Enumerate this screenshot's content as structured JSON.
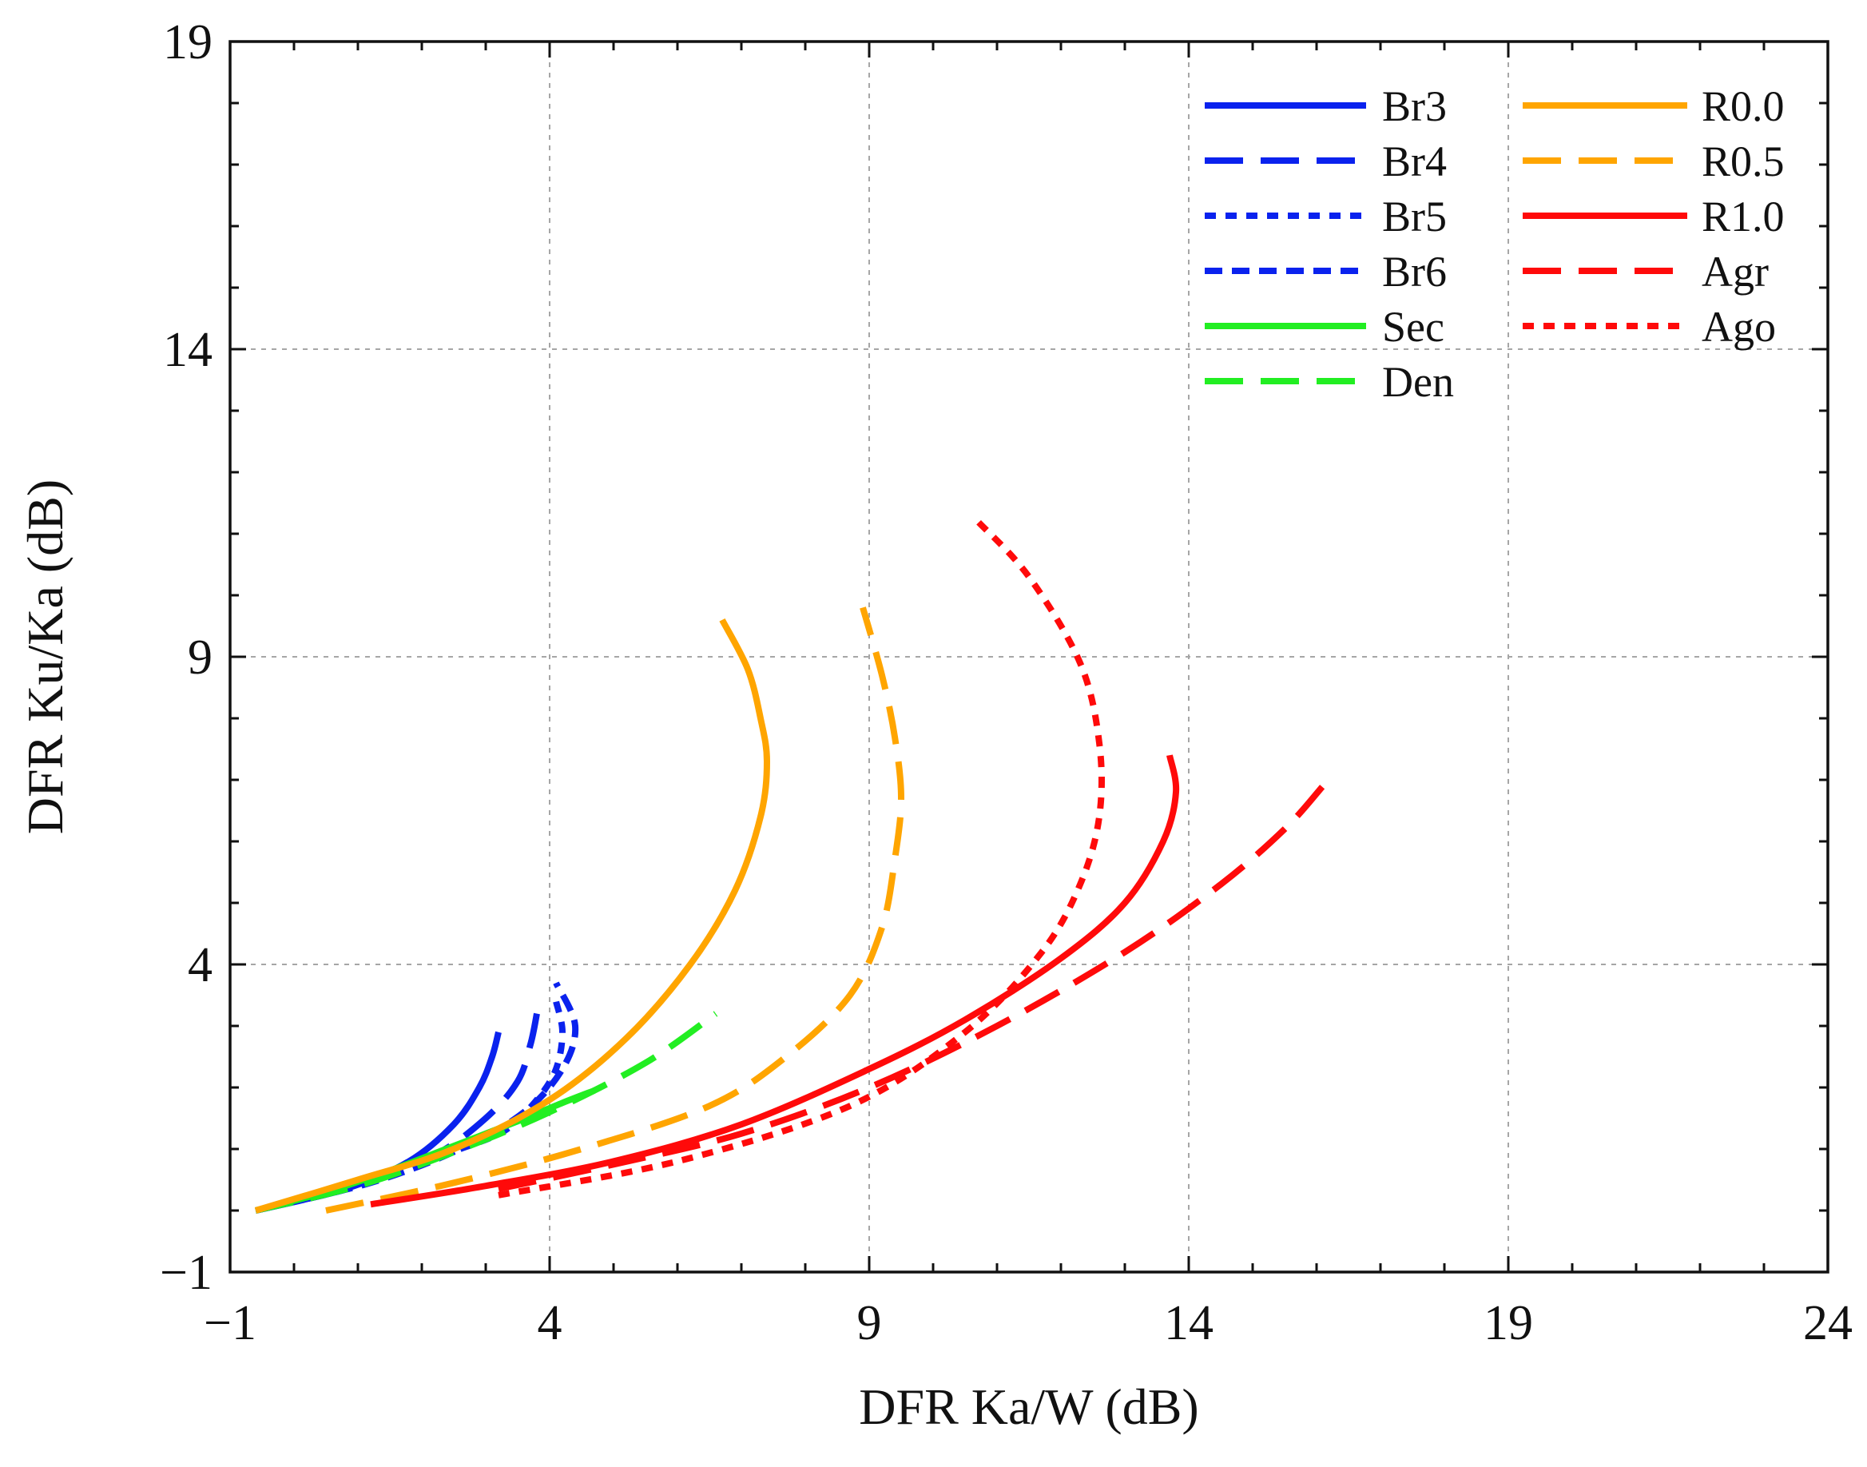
{
  "chart_data": {
    "type": "line",
    "title": "",
    "xlabel": "DFR Ka/W (dB)",
    "ylabel": "DFR Ku/Ka (dB)",
    "xlim": [
      -1,
      24
    ],
    "ylim": [
      -1,
      19
    ],
    "xticks": [
      -1,
      4,
      9,
      14,
      19,
      24
    ],
    "yticks": [
      -1,
      4,
      9,
      14,
      19
    ],
    "xtick_labels": [
      "−1",
      "4",
      "9",
      "14",
      "19",
      "24"
    ],
    "ytick_labels": [
      "−1",
      "4",
      "9",
      "14",
      "19"
    ],
    "grid": true,
    "legend_position": "top-right",
    "colors": {
      "blue": "#0a22ee",
      "green": "#22ee22",
      "orange": "#ffa500",
      "red": "#ff0a0a"
    },
    "series": [
      {
        "name": "Br3",
        "color": "#0a22ee",
        "dash": "solid",
        "x": [
          -0.6,
          0.8,
          1.8,
          2.5,
          2.9,
          3.1,
          3.2
        ],
        "y": [
          0.0,
          0.35,
          0.8,
          1.4,
          2.0,
          2.5,
          2.9
        ]
      },
      {
        "name": "Br4",
        "color": "#0a22ee",
        "dash": "dash",
        "x": [
          -0.6,
          1.0,
          2.2,
          3.0,
          3.5,
          3.7,
          3.8
        ],
        "y": [
          0.0,
          0.4,
          0.9,
          1.5,
          2.1,
          2.7,
          3.2
        ]
      },
      {
        "name": "Br5",
        "color": "#0a22ee",
        "dash": "dot",
        "x": [
          2.6,
          3.3,
          3.8,
          4.1,
          4.2,
          4.1
        ],
        "y": [
          1.0,
          1.3,
          1.8,
          2.3,
          2.9,
          3.4
        ]
      },
      {
        "name": "Br6",
        "color": "#0a22ee",
        "dash": "dashdot",
        "x": [
          -0.6,
          1.2,
          2.6,
          3.6,
          4.2,
          4.4,
          4.1
        ],
        "y": [
          0.0,
          0.45,
          1.0,
          1.6,
          2.3,
          3.0,
          3.7
        ]
      },
      {
        "name": "Sec",
        "color": "#22ee22",
        "dash": "solid",
        "x": [
          -0.6,
          0.5,
          1.5,
          2.5,
          3.5,
          4.2,
          4.7
        ],
        "y": [
          0.0,
          0.3,
          0.65,
          1.05,
          1.45,
          1.75,
          1.95
        ]
      },
      {
        "name": "Den",
        "color": "#22ee22",
        "dash": "dash",
        "x": [
          -0.6,
          1.0,
          2.5,
          4.0,
          5.5,
          6.6
        ],
        "y": [
          0.0,
          0.4,
          0.95,
          1.6,
          2.4,
          3.2
        ]
      },
      {
        "name": "R0.0",
        "color": "#ffa500",
        "dash": "solid",
        "x": [
          -0.6,
          1.0,
          2.5,
          4.0,
          5.2,
          6.2,
          6.9,
          7.3,
          7.4,
          7.3,
          7.1,
          6.7
        ],
        "y": [
          0.0,
          0.5,
          1.0,
          1.8,
          2.8,
          4.0,
          5.2,
          6.4,
          7.3,
          8.0,
          8.8,
          9.6
        ]
      },
      {
        "name": "R0.5",
        "color": "#ffa500",
        "dash": "dash",
        "x": [
          0.5,
          2.5,
          4.5,
          6.5,
          7.7,
          8.7,
          9.2,
          9.4,
          9.5,
          9.4,
          9.2,
          8.9
        ],
        "y": [
          0.0,
          0.45,
          1.0,
          1.7,
          2.5,
          3.5,
          4.6,
          5.7,
          6.7,
          7.7,
          8.7,
          9.8
        ]
      },
      {
        "name": "R1.0",
        "color": "#ff0a0a",
        "dash": "solid",
        "x": [
          1.2,
          3.0,
          5.0,
          7.0,
          9.0,
          10.5,
          12.0,
          13.0,
          13.6,
          13.8,
          13.7
        ],
        "y": [
          0.1,
          0.4,
          0.8,
          1.4,
          2.3,
          3.1,
          4.1,
          5.0,
          6.0,
          6.8,
          7.4
        ]
      },
      {
        "name": "Agr",
        "color": "#ff0a0a",
        "dash": "dash",
        "x": [
          3.2,
          5.0,
          7.0,
          9.0,
          11.0,
          13.0,
          14.5,
          15.5,
          16.1
        ],
        "y": [
          0.35,
          0.75,
          1.25,
          2.0,
          3.0,
          4.2,
          5.3,
          6.2,
          6.9
        ]
      },
      {
        "name": "Ago",
        "color": "#ff0a0a",
        "dash": "dot",
        "x": [
          3.2,
          6.0,
          8.7,
          10.5,
          11.7,
          12.3,
          12.6,
          12.6,
          12.3,
          11.5,
          10.7
        ],
        "y": [
          0.25,
          0.8,
          1.7,
          2.9,
          4.2,
          5.3,
          6.4,
          7.6,
          8.9,
          10.3,
          11.2
        ]
      }
    ]
  }
}
